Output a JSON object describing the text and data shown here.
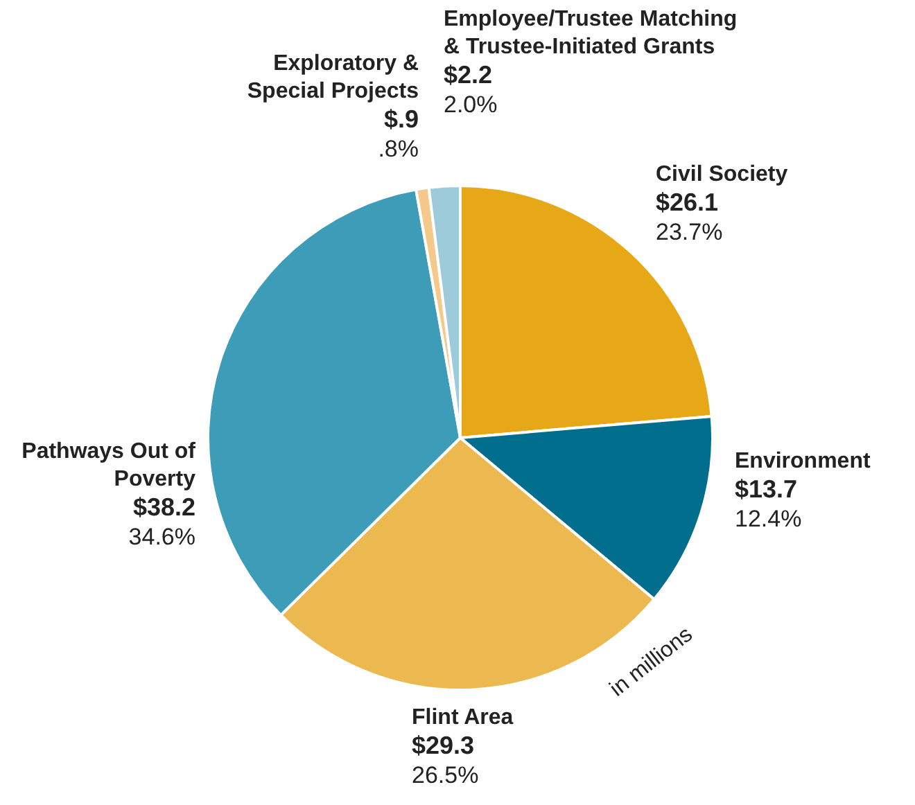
{
  "chart_data": {
    "type": "pie",
    "categories": [
      "Civil Society",
      "Environment",
      "Flint Area",
      "Pathways Out of Poverty",
      "Exploratory & Special Projects",
      "Employee/Trustee Matching & Trustee-Initiated Grants"
    ],
    "values": [
      26.1,
      13.7,
      29.3,
      38.2,
      0.9,
      2.2
    ],
    "colors": [
      "#e6a817",
      "#006e8c",
      "#ecb850",
      "#3d9db8",
      "#f5c98a",
      "#9ecbd9"
    ],
    "value_labels": [
      "$26.1\n23.7%",
      "$13.7\n12.4%",
      "$29.3\n26.5%",
      "$38.2\n34.6%",
      "$.9\n.8%",
      "$2.2\n2.0%"
    ],
    "annotations": [
      "in millions"
    ],
    "legend": false
  }
}
